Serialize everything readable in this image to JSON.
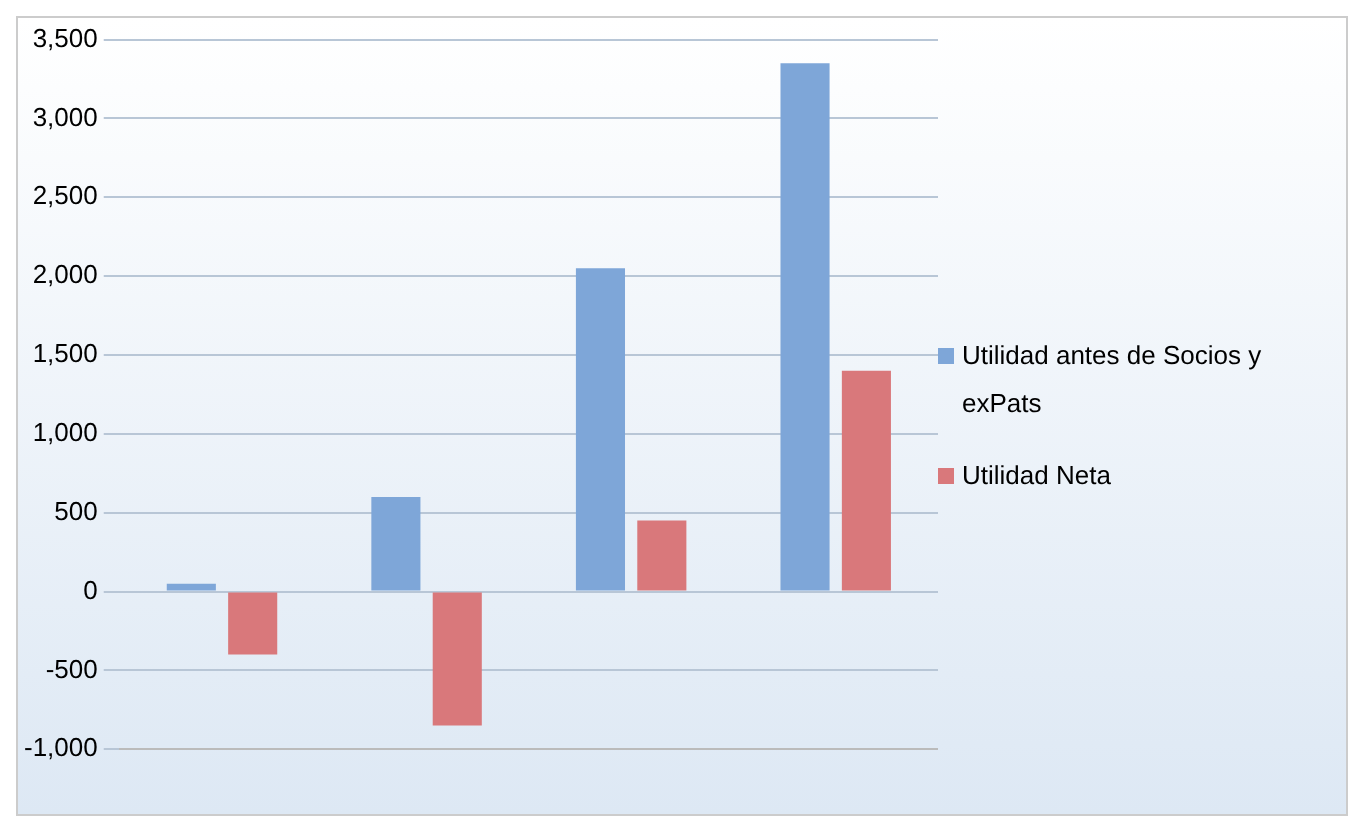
{
  "chart_data": {
    "type": "bar",
    "categories": [
      null,
      null,
      null,
      null
    ],
    "series": [
      {
        "name": "Utilidad antes de Socios y exPats",
        "color": "#7ea6d8",
        "values": [
          50,
          600,
          2050,
          3350
        ]
      },
      {
        "name": "Utilidad Neta",
        "color": "#d9787b",
        "values": [
          -400,
          -850,
          450,
          1400
        ]
      }
    ],
    "ylim": [
      -1000,
      3500
    ],
    "yticks": [
      {
        "value": -1000,
        "label": "-1,000"
      },
      {
        "value": -500,
        "label": "-500"
      },
      {
        "value": 0,
        "label": "0"
      },
      {
        "value": 500,
        "label": "500"
      },
      {
        "value": 1000,
        "label": "1,000"
      },
      {
        "value": 1500,
        "label": "1,500"
      },
      {
        "value": 2000,
        "label": "2,000"
      },
      {
        "value": 2500,
        "label": "2,500"
      },
      {
        "value": 3000,
        "label": "3,000"
      },
      {
        "value": 3500,
        "label": "3,500"
      }
    ],
    "grid": "y",
    "legend": "right"
  }
}
